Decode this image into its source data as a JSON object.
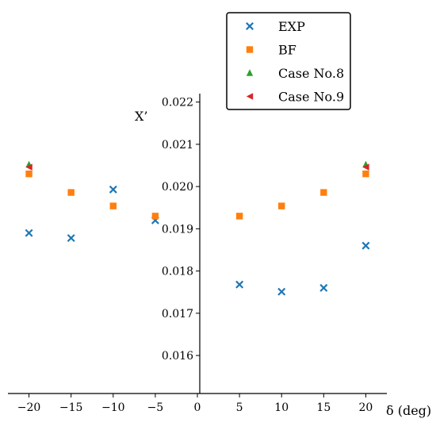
{
  "chart_data": {
    "type": "scatter",
    "xlabel": "δ (deg)",
    "ylabel": "X’",
    "xlim": [
      -22.5,
      22.5
    ],
    "ylim": [
      0.0151,
      0.0222
    ],
    "xticks": [
      -20,
      -15,
      -10,
      -5,
      0,
      5,
      10,
      15,
      20
    ],
    "xtick_labels": [
      "−20",
      "−15",
      "−10",
      "−5",
      "0",
      "5",
      "10",
      "15",
      "20"
    ],
    "yticks": [
      0.016,
      0.017,
      0.018,
      0.019,
      0.02,
      0.021,
      0.022
    ],
    "ytick_labels": [
      "0.016",
      "0.017",
      "0.018",
      "0.019",
      "0.020",
      "0.021",
      "0.022"
    ],
    "grid": false,
    "legend_position": "top-right",
    "series": [
      {
        "name": "EXP",
        "marker": "x",
        "color": "#1f77b4",
        "x": [
          -20,
          -15,
          -10,
          -5,
          5,
          10,
          15,
          20
        ],
        "y": [
          0.0189,
          0.01878,
          0.01993,
          0.0192,
          0.01768,
          0.01751,
          0.0176,
          0.0186
        ]
      },
      {
        "name": "BF",
        "marker": "square",
        "color": "#ff7f0e",
        "x": [
          -20,
          -15,
          -10,
          -5,
          5,
          10,
          15,
          20
        ],
        "y": [
          0.0203,
          0.01986,
          0.01954,
          0.0193,
          0.0193,
          0.01954,
          0.01986,
          0.0203
        ]
      },
      {
        "name": "Case No.8",
        "marker": "triangle-up",
        "color": "#2ca02c",
        "x": [
          -20,
          20
        ],
        "y": [
          0.02052,
          0.02052
        ]
      },
      {
        "name": "Case No.9",
        "marker": "triangle-left",
        "color": "#d62728",
        "x": [
          -20,
          20
        ],
        "y": [
          0.02046,
          0.02046
        ]
      }
    ]
  }
}
